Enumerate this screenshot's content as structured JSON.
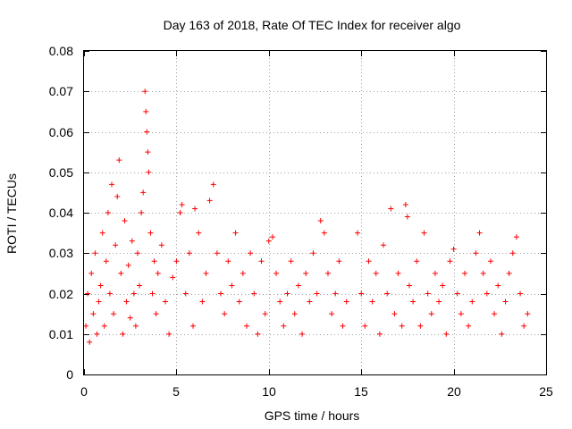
{
  "chart_data": {
    "type": "scatter",
    "title": "Day 163 of 2018, Rate Of TEC Index for receiver algo",
    "xlabel": "GPS time / hours",
    "ylabel": "ROTI / TECUs",
    "xlim": [
      0,
      25
    ],
    "ylim": [
      0,
      0.08
    ],
    "x_ticks": [
      0,
      5,
      10,
      15,
      20,
      25
    ],
    "x_tick_labels": [
      "0",
      "5",
      "10",
      "15",
      "20",
      "25"
    ],
    "y_ticks": [
      0,
      0.01,
      0.02,
      0.03,
      0.04,
      0.05,
      0.06,
      0.07,
      0.08
    ],
    "y_tick_labels": [
      "0",
      "0.01",
      "0.02",
      "0.03",
      "0.04",
      "0.05",
      "0.06",
      "0.07",
      "0.08"
    ],
    "grid": true,
    "marker": "plus",
    "color": "#ff0000",
    "series": [
      {
        "points": [
          [
            0.1,
            0.012
          ],
          [
            0.2,
            0.02
          ],
          [
            0.3,
            0.008
          ],
          [
            0.4,
            0.025
          ],
          [
            0.5,
            0.015
          ],
          [
            0.6,
            0.03
          ],
          [
            0.7,
            0.01
          ],
          [
            0.8,
            0.018
          ],
          [
            0.9,
            0.022
          ],
          [
            1.0,
            0.035
          ],
          [
            1.1,
            0.012
          ],
          [
            1.2,
            0.028
          ],
          [
            1.3,
            0.04
          ],
          [
            1.4,
            0.02
          ],
          [
            1.5,
            0.047
          ],
          [
            1.6,
            0.015
          ],
          [
            1.7,
            0.032
          ],
          [
            1.8,
            0.044
          ],
          [
            1.9,
            0.053
          ],
          [
            2.0,
            0.025
          ],
          [
            2.1,
            0.01
          ],
          [
            2.2,
            0.038
          ],
          [
            2.3,
            0.018
          ],
          [
            2.4,
            0.027
          ],
          [
            2.5,
            0.014
          ],
          [
            2.6,
            0.033
          ],
          [
            2.7,
            0.02
          ],
          [
            2.8,
            0.012
          ],
          [
            2.9,
            0.03
          ],
          [
            3.0,
            0.022
          ],
          [
            3.1,
            0.04
          ],
          [
            3.2,
            0.045
          ],
          [
            3.3,
            0.07
          ],
          [
            3.35,
            0.065
          ],
          [
            3.4,
            0.06
          ],
          [
            3.45,
            0.055
          ],
          [
            3.5,
            0.05
          ],
          [
            3.6,
            0.035
          ],
          [
            3.7,
            0.02
          ],
          [
            3.8,
            0.028
          ],
          [
            3.9,
            0.015
          ],
          [
            4.0,
            0.025
          ],
          [
            4.2,
            0.032
          ],
          [
            4.4,
            0.018
          ],
          [
            4.6,
            0.01
          ],
          [
            4.8,
            0.024
          ],
          [
            5.0,
            0.028
          ],
          [
            5.2,
            0.04
          ],
          [
            5.3,
            0.042
          ],
          [
            5.5,
            0.02
          ],
          [
            5.7,
            0.03
          ],
          [
            5.9,
            0.012
          ],
          [
            6.0,
            0.041
          ],
          [
            6.2,
            0.035
          ],
          [
            6.4,
            0.018
          ],
          [
            6.6,
            0.025
          ],
          [
            6.8,
            0.043
          ],
          [
            7.0,
            0.047
          ],
          [
            7.2,
            0.03
          ],
          [
            7.4,
            0.02
          ],
          [
            7.6,
            0.015
          ],
          [
            7.8,
            0.028
          ],
          [
            8.0,
            0.022
          ],
          [
            8.2,
            0.035
          ],
          [
            8.4,
            0.018
          ],
          [
            8.6,
            0.025
          ],
          [
            8.8,
            0.012
          ],
          [
            9.0,
            0.03
          ],
          [
            9.2,
            0.02
          ],
          [
            9.4,
            0.01
          ],
          [
            9.6,
            0.028
          ],
          [
            9.8,
            0.015
          ],
          [
            10.0,
            0.033
          ],
          [
            10.2,
            0.034
          ],
          [
            10.4,
            0.025
          ],
          [
            10.6,
            0.018
          ],
          [
            10.8,
            0.012
          ],
          [
            11.0,
            0.02
          ],
          [
            11.2,
            0.028
          ],
          [
            11.4,
            0.015
          ],
          [
            11.6,
            0.022
          ],
          [
            11.8,
            0.01
          ],
          [
            12.0,
            0.025
          ],
          [
            12.2,
            0.018
          ],
          [
            12.4,
            0.03
          ],
          [
            12.6,
            0.02
          ],
          [
            12.8,
            0.038
          ],
          [
            13.0,
            0.035
          ],
          [
            13.2,
            0.025
          ],
          [
            13.4,
            0.015
          ],
          [
            13.6,
            0.02
          ],
          [
            13.8,
            0.028
          ],
          [
            14.0,
            0.012
          ],
          [
            14.2,
            0.018
          ],
          [
            14.8,
            0.035
          ],
          [
            15.0,
            0.02
          ],
          [
            15.2,
            0.012
          ],
          [
            15.4,
            0.028
          ],
          [
            15.6,
            0.018
          ],
          [
            15.8,
            0.025
          ],
          [
            16.0,
            0.01
          ],
          [
            16.2,
            0.032
          ],
          [
            16.4,
            0.02
          ],
          [
            16.6,
            0.041
          ],
          [
            16.8,
            0.015
          ],
          [
            17.0,
            0.025
          ],
          [
            17.2,
            0.012
          ],
          [
            17.4,
            0.042
          ],
          [
            17.5,
            0.039
          ],
          [
            17.6,
            0.022
          ],
          [
            17.8,
            0.018
          ],
          [
            18.0,
            0.028
          ],
          [
            18.2,
            0.012
          ],
          [
            18.4,
            0.035
          ],
          [
            18.6,
            0.02
          ],
          [
            18.8,
            0.015
          ],
          [
            19.0,
            0.025
          ],
          [
            19.2,
            0.018
          ],
          [
            19.4,
            0.022
          ],
          [
            19.6,
            0.01
          ],
          [
            19.8,
            0.028
          ],
          [
            20.0,
            0.031
          ],
          [
            20.2,
            0.02
          ],
          [
            20.4,
            0.015
          ],
          [
            20.6,
            0.025
          ],
          [
            20.8,
            0.012
          ],
          [
            21.0,
            0.018
          ],
          [
            21.2,
            0.03
          ],
          [
            21.4,
            0.035
          ],
          [
            21.6,
            0.025
          ],
          [
            21.8,
            0.02
          ],
          [
            22.0,
            0.028
          ],
          [
            22.2,
            0.015
          ],
          [
            22.4,
            0.022
          ],
          [
            22.6,
            0.01
          ],
          [
            22.8,
            0.018
          ],
          [
            23.0,
            0.025
          ],
          [
            23.2,
            0.03
          ],
          [
            23.4,
            0.034
          ],
          [
            23.6,
            0.02
          ],
          [
            23.8,
            0.012
          ],
          [
            24.0,
            0.015
          ]
        ]
      }
    ]
  }
}
